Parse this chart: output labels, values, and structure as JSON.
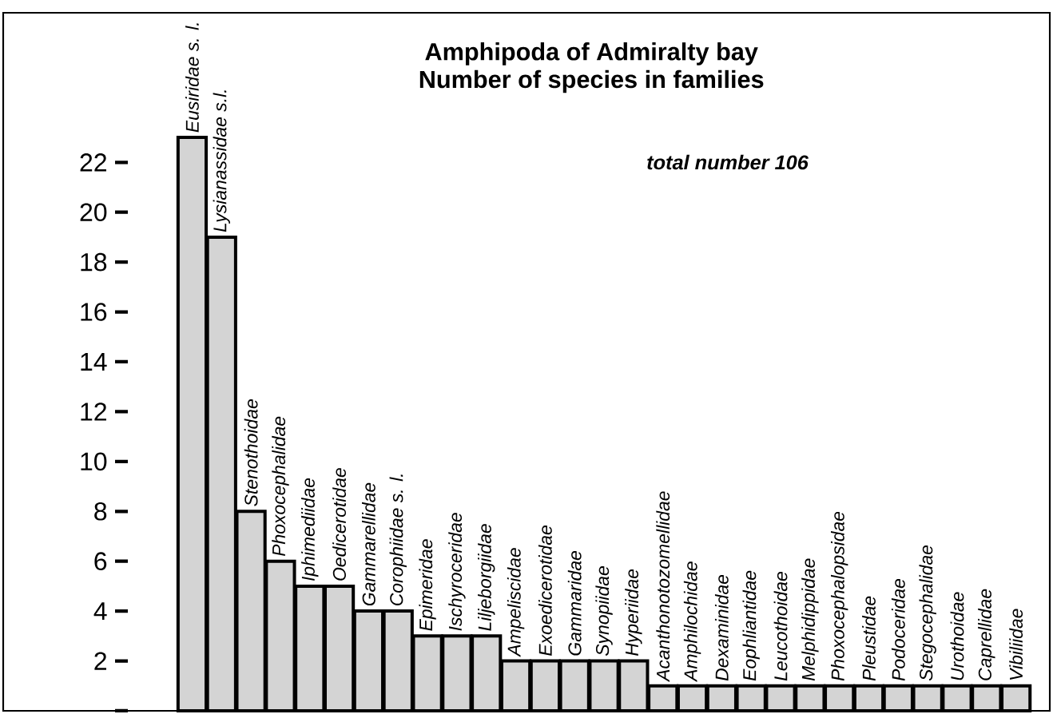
{
  "chart_data": {
    "type": "bar",
    "title": "Amphipoda of Admiralty bay",
    "subtitle": "Number of species in families",
    "categories": [
      "Eusiridae s. l.",
      "Lysianassidae s.l.",
      "Stenothoidae",
      "Phoxocephalidae",
      "Iphimediidae",
      "Oedicerotidae",
      "Gammarellidae",
      "Corophiidae s. l.",
      "Epimeridae",
      "Ischyroceridae",
      "Liljeborgiidae",
      "Ampeliscidae",
      "Exoedicerotidae",
      "Gammaridae",
      "Synopiidae",
      "Hyperiidae",
      "Acanthonotozomellidae",
      "Amphilochidae",
      "Dexaminidae",
      "Eophliantidae",
      "Leucothoidae",
      "Melphidippidae",
      "Phoxocephalopsidae",
      "Pleustidae",
      "Podoceridae",
      "Stegocephalidae",
      "Urothoidae",
      "Caprellidae",
      "Vibiliidae"
    ],
    "values": [
      23,
      19,
      8,
      6,
      5,
      5,
      4,
      4,
      3,
      3,
      3,
      2,
      2,
      2,
      2,
      2,
      1,
      1,
      1,
      1,
      1,
      1,
      1,
      1,
      1,
      1,
      1,
      1,
      1
    ],
    "color": "#d4d4d4",
    "ylim": [
      0,
      28
    ],
    "yticks": [
      {
        "value": 0,
        "label": null
      },
      2,
      4,
      6,
      8,
      10,
      12,
      14,
      16,
      18,
      20,
      22
    ],
    "annotations": [
      "total number 106"
    ]
  }
}
